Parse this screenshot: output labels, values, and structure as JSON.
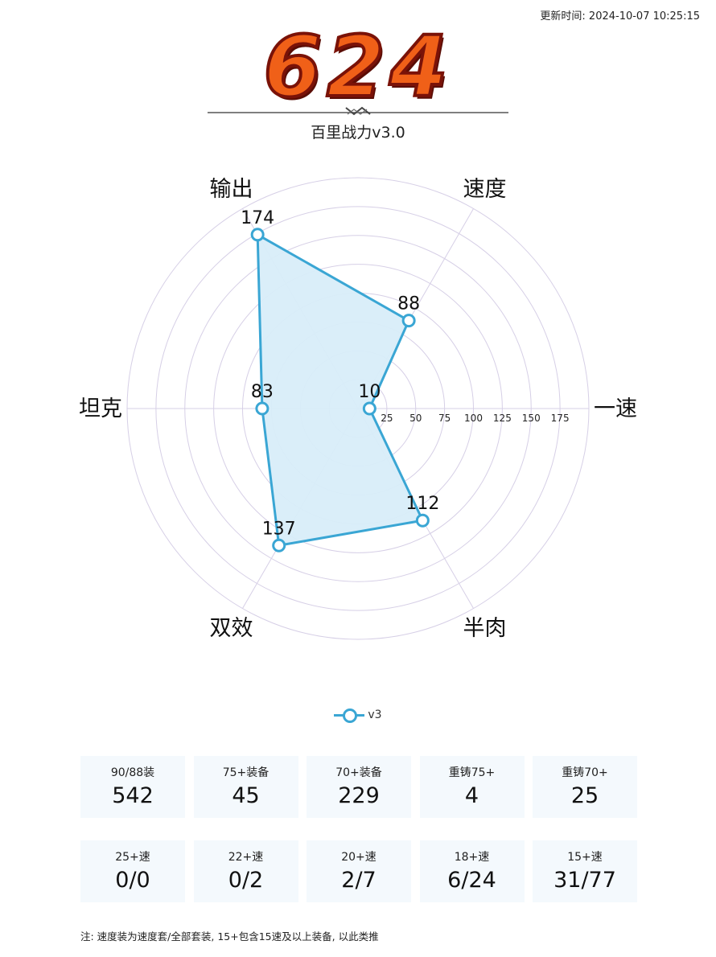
{
  "update_time": "更新时间: 2024-10-07 10:25:15",
  "score": "624",
  "colors": {
    "series_line": "#3aa6d4",
    "series_fill": "#d8edf9",
    "grid": "#d6cfe6",
    "score_fill": "#f06018",
    "card_bg": "#f4f9fd"
  },
  "chart_data": {
    "type": "radar",
    "title": "百里战力v3.0",
    "axes": [
      "一速",
      "速度",
      "输出",
      "坦克",
      "双效",
      "半肉"
    ],
    "radial_ticks": [
      25,
      50,
      75,
      100,
      125,
      150,
      175
    ],
    "range": [
      0,
      200
    ],
    "legend": "bottom",
    "series": [
      {
        "name": "v3",
        "values": [
          10,
          88,
          174,
          83,
          137,
          112
        ]
      }
    ]
  },
  "stats_row1": [
    {
      "label": "90/88装",
      "value": "542"
    },
    {
      "label": "75+装备",
      "value": "45"
    },
    {
      "label": "70+装备",
      "value": "229"
    },
    {
      "label": "重铸75+",
      "value": "4"
    },
    {
      "label": "重铸70+",
      "value": "25"
    }
  ],
  "stats_row2": [
    {
      "label": "25+速",
      "value": "0/0"
    },
    {
      "label": "22+速",
      "value": "0/2"
    },
    {
      "label": "20+速",
      "value": "2/7"
    },
    {
      "label": "18+速",
      "value": "6/24"
    },
    {
      "label": "15+速",
      "value": "31/77"
    }
  ],
  "note": "注: 速度装为速度套/全部套装, 15+包含15速及以上装备, 以此类推"
}
